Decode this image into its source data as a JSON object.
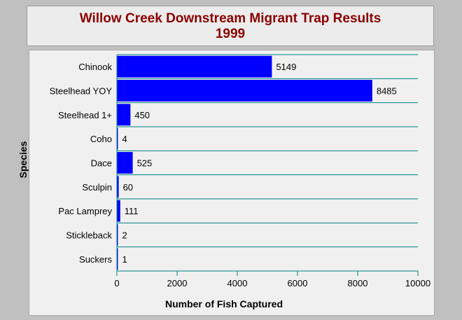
{
  "chart_data": {
    "type": "bar",
    "orientation": "horizontal",
    "title": "Willow Creek Downstream Migrant Trap Results",
    "subtitle": "1999",
    "xlabel": "Number of Fish Captured",
    "ylabel": "Species",
    "categories": [
      "Chinook",
      "Steelhead YOY",
      "Steelhead 1+",
      "Coho",
      "Dace",
      "Sculpin",
      "Pac Lamprey",
      "Stickleback",
      "Suckers"
    ],
    "values": [
      5149,
      8485,
      450,
      4,
      525,
      60,
      111,
      2,
      1
    ],
    "data_labels": [
      "5149",
      "8485",
      "450",
      "4",
      "525",
      "60",
      "111",
      "2",
      "1"
    ],
    "xlim": [
      0,
      10000
    ],
    "xticks": [
      0,
      2000,
      4000,
      6000,
      8000,
      10000
    ],
    "xtick_labels": [
      "0",
      "2000",
      "4000",
      "6000",
      "8000",
      "10000"
    ],
    "grid": "horizontal",
    "legend": "none",
    "colors": {
      "bar": "#0000ff",
      "title": "#8b0000",
      "axis": "#008080",
      "background": "#c0c0c0"
    }
  }
}
